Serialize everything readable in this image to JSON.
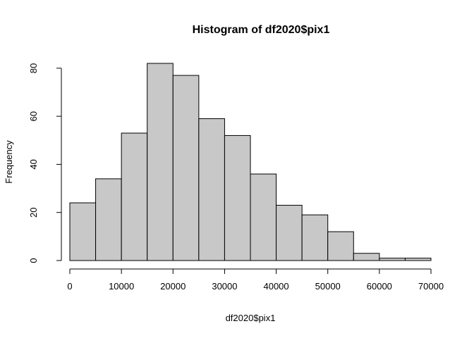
{
  "chart_data": {
    "type": "bar",
    "title": "Histogram of df2020$pix1",
    "xlabel": "df2020$pix1",
    "ylabel": "Frequency",
    "bin_edges": [
      0,
      5000,
      10000,
      15000,
      20000,
      25000,
      30000,
      35000,
      40000,
      45000,
      50000,
      55000,
      60000,
      65000,
      70000
    ],
    "values": [
      24,
      34,
      53,
      82,
      77,
      59,
      52,
      36,
      23,
      19,
      12,
      3,
      1,
      1
    ],
    "xlim": [
      0,
      70000
    ],
    "ylim": [
      0,
      82
    ],
    "x_ticks": [
      0,
      10000,
      20000,
      30000,
      40000,
      50000,
      60000,
      70000
    ],
    "y_ticks": [
      0,
      20,
      40,
      60,
      80
    ],
    "bar_color": "#c8c8c8",
    "grid": false,
    "legend": "none"
  }
}
